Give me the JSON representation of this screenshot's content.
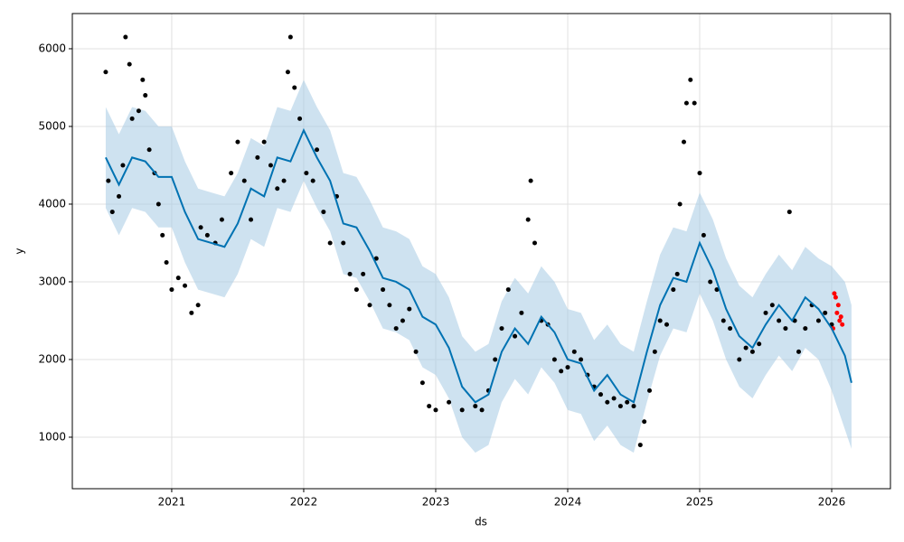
{
  "chart_data": {
    "type": "forecast",
    "xlabel": "ds",
    "ylabel": "y",
    "xlim": [
      2020.247,
      2026.445
    ],
    "ylim": [
      337,
      6453
    ],
    "xticks": [
      2021,
      2022,
      2023,
      2024,
      2025,
      2026
    ],
    "yticks": [
      1000,
      2000,
      3000,
      4000,
      5000,
      6000
    ],
    "grid": true,
    "x": [
      2020.5,
      2020.6,
      2020.7,
      2020.8,
      2020.9,
      2021.0,
      2021.1,
      2021.2,
      2021.3,
      2021.4,
      2021.5,
      2021.6,
      2021.7,
      2021.8,
      2021.9,
      2022.0,
      2022.1,
      2022.2,
      2022.3,
      2022.4,
      2022.5,
      2022.6,
      2022.7,
      2022.8,
      2022.9,
      2023.0,
      2023.1,
      2023.2,
      2023.3,
      2023.4,
      2023.5,
      2023.6,
      2023.7,
      2023.8,
      2023.9,
      2024.0,
      2024.1,
      2024.2,
      2024.3,
      2024.4,
      2024.5,
      2024.6,
      2024.7,
      2024.8,
      2024.9,
      2025.0,
      2025.1,
      2025.2,
      2025.3,
      2025.4,
      2025.5,
      2025.6,
      2025.7,
      2025.8,
      2025.9,
      2026.0,
      2026.1,
      2026.15
    ],
    "band": {
      "color": "#a6cbe3",
      "upper": [
        5250,
        4900,
        5250,
        5200,
        5000,
        5000,
        4550,
        4200,
        4150,
        4100,
        4400,
        4850,
        4750,
        5250,
        5200,
        5600,
        5250,
        4950,
        4400,
        4350,
        4050,
        3700,
        3650,
        3550,
        3200,
        3100,
        2800,
        2300,
        2100,
        2200,
        2750,
        3050,
        2850,
        3200,
        3000,
        2650,
        2600,
        2250,
        2450,
        2200,
        2100,
        2750,
        3350,
        3700,
        3650,
        4150,
        3800,
        3300,
        2950,
        2800,
        3100,
        3350,
        3150,
        3450,
        3300,
        3200,
        3000,
        2700
      ],
      "lower": [
        3950,
        3600,
        3950,
        3900,
        3700,
        3700,
        3250,
        2900,
        2850,
        2800,
        3100,
        3550,
        3450,
        3950,
        3900,
        4300,
        3950,
        3650,
        3100,
        3050,
        2750,
        2400,
        2350,
        2250,
        1900,
        1800,
        1500,
        1000,
        800,
        900,
        1450,
        1750,
        1550,
        1900,
        1700,
        1350,
        1300,
        950,
        1150,
        900,
        800,
        1450,
        2050,
        2400,
        2350,
        2850,
        2500,
        2000,
        1650,
        1500,
        1800,
        2050,
        1850,
        2150,
        2000,
        1600,
        1100,
        850
      ]
    },
    "forecast": {
      "color": "#0072b2",
      "values": [
        4600,
        4250,
        4600,
        4550,
        4350,
        4350,
        3900,
        3550,
        3500,
        3450,
        3750,
        4200,
        4100,
        4600,
        4550,
        4950,
        4600,
        4300,
        3750,
        3700,
        3400,
        3050,
        3000,
        2900,
        2550,
        2450,
        2150,
        1650,
        1450,
        1550,
        2100,
        2400,
        2200,
        2550,
        2350,
        2000,
        1950,
        1600,
        1800,
        1550,
        1450,
        2100,
        2700,
        3050,
        3000,
        3500,
        3150,
        2650,
        2300,
        2150,
        2450,
        2700,
        2500,
        2800,
        2650,
        2400,
        2050,
        1700
      ]
    },
    "points": [
      {
        "color": "#000000",
        "x": [
          2020.5,
          2020.52,
          2020.55,
          2020.6,
          2020.63,
          2020.65,
          2020.68,
          2020.7,
          2020.75,
          2020.78,
          2020.8,
          2020.83,
          2020.87,
          2020.9,
          2020.93,
          2020.96,
          2021.0,
          2021.05,
          2021.1,
          2021.15,
          2021.2,
          2021.22,
          2021.27,
          2021.33,
          2021.38,
          2021.45,
          2021.5,
          2021.55,
          2021.6,
          2021.65,
          2021.7,
          2021.75,
          2021.8,
          2021.85,
          2021.88,
          2021.9,
          2021.93,
          2021.97,
          2022.02,
          2022.07,
          2022.1,
          2022.15,
          2022.2,
          2022.25,
          2022.3,
          2022.35,
          2022.4,
          2022.45,
          2022.5,
          2022.55,
          2022.6,
          2022.65,
          2022.7,
          2022.75,
          2022.8,
          2022.85,
          2022.9,
          2022.95,
          2023.0,
          2023.1,
          2023.2,
          2023.3,
          2023.35,
          2023.4,
          2023.45,
          2023.5,
          2023.55,
          2023.6,
          2023.65,
          2023.7,
          2023.72,
          2023.75,
          2023.8,
          2023.85,
          2023.9,
          2023.95,
          2024.0,
          2024.05,
          2024.1,
          2024.15,
          2024.2,
          2024.25,
          2024.3,
          2024.35,
          2024.4,
          2024.45,
          2024.5,
          2024.55,
          2024.58,
          2024.62,
          2024.66,
          2024.7,
          2024.75,
          2024.8,
          2024.83,
          2024.85,
          2024.88,
          2024.9,
          2024.93,
          2024.96,
          2025.0,
          2025.03,
          2025.08,
          2025.13,
          2025.18,
          2025.23,
          2025.3,
          2025.35,
          2025.4,
          2025.45,
          2025.5,
          2025.55,
          2025.6,
          2025.65,
          2025.68,
          2025.72,
          2025.75,
          2025.8,
          2025.85,
          2025.9,
          2025.95,
          2026.0
        ],
        "values": [
          5700,
          4300,
          3900,
          4100,
          4500,
          6150,
          5800,
          5100,
          5200,
          5600,
          5400,
          4700,
          4400,
          4000,
          3600,
          3250,
          2900,
          3050,
          2950,
          2600,
          2700,
          3700,
          3600,
          3500,
          3800,
          4400,
          4800,
          4300,
          3800,
          4600,
          4800,
          4500,
          4200,
          4300,
          5700,
          6150,
          5500,
          5100,
          4400,
          4300,
          4700,
          3900,
          3500,
          4100,
          3500,
          3100,
          2900,
          3100,
          2700,
          3300,
          2900,
          2700,
          2400,
          2500,
          2650,
          2100,
          1700,
          1400,
          1350,
          1450,
          1350,
          1400,
          1350,
          1600,
          2000,
          2400,
          2900,
          2300,
          2600,
          3800,
          4300,
          3500,
          2500,
          2450,
          2000,
          1850,
          1900,
          2100,
          2000,
          1800,
          1650,
          1550,
          1450,
          1500,
          1400,
          1450,
          1400,
          900,
          1200,
          1600,
          2100,
          2500,
          2450,
          2900,
          3100,
          4000,
          4800,
          5300,
          5600,
          5300,
          4400,
          3600,
          3000,
          2900,
          2500,
          2400,
          2000,
          2150,
          2100,
          2200,
          2600,
          2700,
          2500,
          2400,
          3900,
          2500,
          2100,
          2400,
          2700,
          2500,
          2600,
          2450
        ]
      },
      {
        "color": "#ff0000",
        "x": [
          2026.01,
          2026.02,
          2026.03,
          2026.04,
          2026.05,
          2026.06,
          2026.07,
          2026.08
        ],
        "values": [
          2400,
          2850,
          2800,
          2600,
          2700,
          2500,
          2550,
          2450
        ]
      }
    ]
  }
}
